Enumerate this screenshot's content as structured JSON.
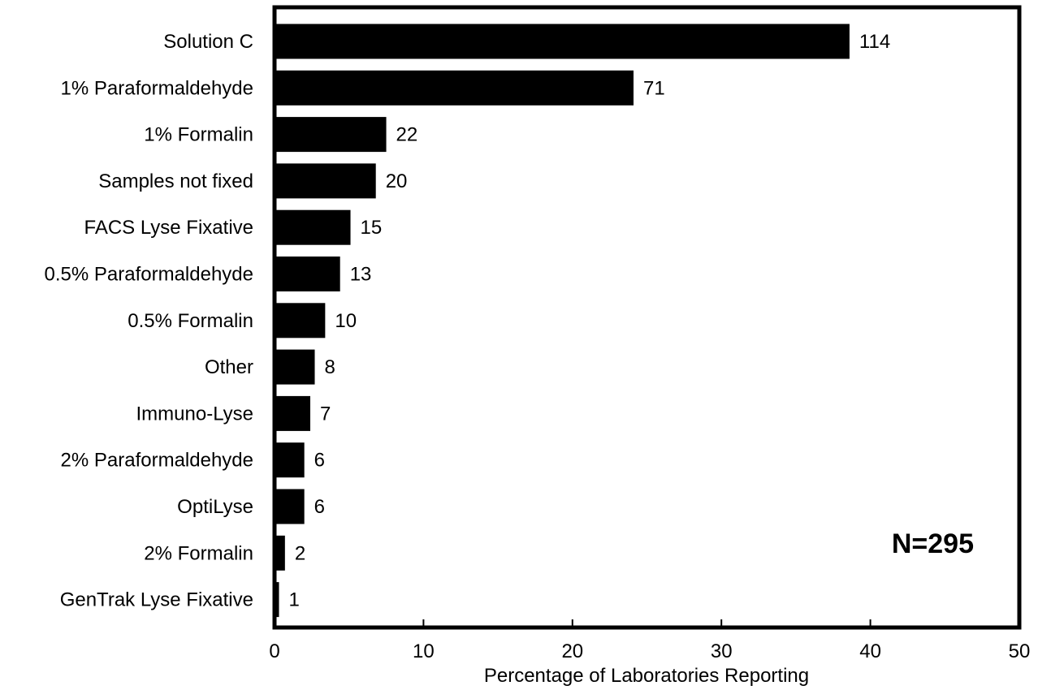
{
  "chart_data": {
    "type": "bar",
    "orientation": "horizontal",
    "categories": [
      "Solution C",
      "1% Paraformaldehyde",
      "1% Formalin",
      "Samples not fixed",
      "FACS Lyse Fixative",
      "0.5% Paraformaldehyde",
      "0.5% Formalin",
      "Other",
      "Immuno-Lyse",
      "2% Paraformaldehyde",
      "OptiLyse",
      "2% Formalin",
      "GenTrak Lyse Fixative"
    ],
    "values": [
      38.6,
      24.1,
      7.5,
      6.8,
      5.1,
      4.4,
      3.4,
      2.7,
      2.4,
      2.0,
      2.0,
      0.7,
      0.3
    ],
    "data_labels": [
      "114",
      "71",
      "22",
      "20",
      "15",
      "13",
      "10",
      "8",
      "7",
      "6",
      "6",
      "2",
      "1"
    ],
    "title": "",
    "xlabel": "Percentage of Laboratories Reporting",
    "ylabel": "",
    "xlim": [
      0,
      50
    ],
    "xticks": [
      "0",
      "10",
      "20",
      "30",
      "40",
      "50"
    ],
    "grid": false,
    "legend": "none",
    "annotation": "N=295",
    "bar_color": "#000000"
  }
}
